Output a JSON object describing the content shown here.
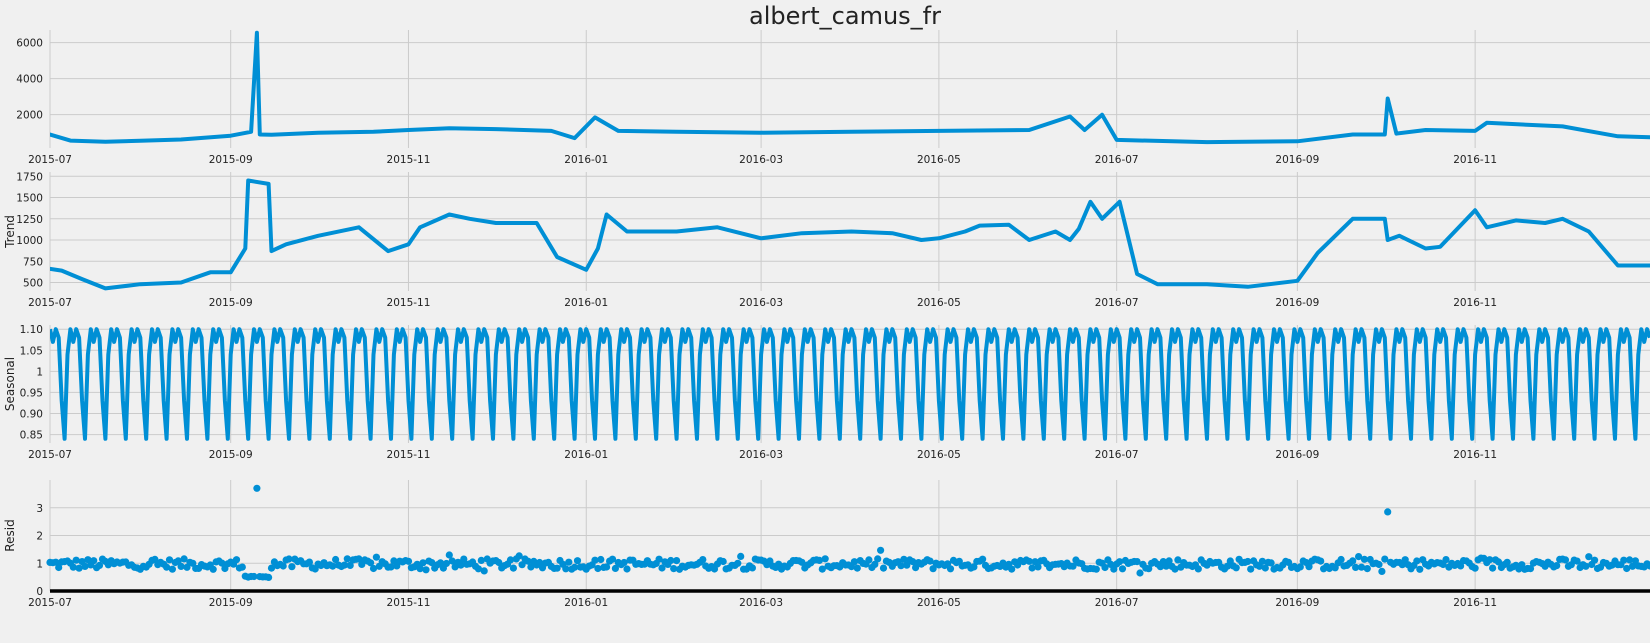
{
  "chart_data": {
    "title": "albert_camus_fr",
    "type": "line",
    "x_ticks": [
      "2015-07",
      "2015-09",
      "2015-11",
      "2016-01",
      "2016-03",
      "2016-05",
      "2016-07",
      "2016-09",
      "2016-11"
    ],
    "x_range": [
      "2015-07-01",
      "2016-12-31"
    ],
    "grid": true,
    "line_color": "#008fd5",
    "background_color": "#f0f0f0",
    "panels": [
      {
        "id": "observed",
        "type": "line",
        "ylabel": "",
        "ylim": [
          150,
          6700
        ],
        "yticks": [
          2000,
          4000,
          6000
        ],
        "series": [
          {
            "x": [
              "2015-07-01",
              "2015-07-08",
              "2015-07-20",
              "2015-08-01",
              "2015-08-15",
              "2015-09-01",
              "2015-09-08",
              "2015-09-10",
              "2015-09-11",
              "2015-09-15",
              "2015-10-01",
              "2015-10-20",
              "2015-11-01",
              "2015-11-15",
              "2015-12-01",
              "2015-12-20",
              "2015-12-28",
              "2016-01-04",
              "2016-01-12",
              "2016-02-01",
              "2016-03-01",
              "2016-04-01",
              "2016-05-01",
              "2016-06-01",
              "2016-06-15",
              "2016-06-20",
              "2016-06-26",
              "2016-07-01",
              "2016-08-01",
              "2016-09-01",
              "2016-09-20",
              "2016-10-01",
              "2016-10-02",
              "2016-10-05",
              "2016-10-15",
              "2016-11-01",
              "2016-11-05",
              "2016-12-01",
              "2016-12-20",
              "2016-12-31"
            ],
            "y": [
              900,
              560,
              500,
              550,
              620,
              830,
              1050,
              6550,
              900,
              880,
              1000,
              1050,
              1150,
              1250,
              1200,
              1100,
              700,
              1850,
              1100,
              1050,
              1000,
              1050,
              1100,
              1150,
              1900,
              1150,
              2000,
              600,
              480,
              520,
              900,
              900,
              2900,
              950,
              1150,
              1100,
              1550,
              1350,
              800,
              750
            ]
          }
        ]
      },
      {
        "id": "trend",
        "type": "line",
        "ylabel": "Trend",
        "ylim": [
          400,
          1800
        ],
        "yticks": [
          500,
          750,
          1000,
          1250,
          1500,
          1750
        ],
        "series": [
          {
            "x": [
              "2015-07-01",
              "2015-07-05",
              "2015-07-12",
              "2015-07-20",
              "2015-08-01",
              "2015-08-15",
              "2015-08-25",
              "2015-09-01",
              "2015-09-06",
              "2015-09-07",
              "2015-09-14",
              "2015-09-15",
              "2015-09-20",
              "2015-10-01",
              "2015-10-15",
              "2015-10-25",
              "2015-11-01",
              "2015-11-05",
              "2015-11-15",
              "2015-11-22",
              "2015-12-01",
              "2015-12-15",
              "2015-12-22",
              "2016-01-01",
              "2016-01-05",
              "2016-01-08",
              "2016-01-15",
              "2016-02-01",
              "2016-02-15",
              "2016-03-01",
              "2016-03-15",
              "2016-04-01",
              "2016-04-15",
              "2016-04-25",
              "2016-05-01",
              "2016-05-10",
              "2016-05-15",
              "2016-05-25",
              "2016-06-01",
              "2016-06-10",
              "2016-06-15",
              "2016-06-18",
              "2016-06-22",
              "2016-06-26",
              "2016-07-02",
              "2016-07-08",
              "2016-07-15",
              "2016-08-01",
              "2016-08-15",
              "2016-09-01",
              "2016-09-08",
              "2016-09-20",
              "2016-09-25",
              "2016-10-01",
              "2016-10-02",
              "2016-10-06",
              "2016-10-15",
              "2016-10-20",
              "2016-11-01",
              "2016-11-05",
              "2016-11-15",
              "2016-11-25",
              "2016-12-01",
              "2016-12-10",
              "2016-12-20",
              "2016-12-31"
            ],
            "y": [
              660,
              640,
              540,
              430,
              480,
              500,
              620,
              620,
              900,
              1700,
              1660,
              870,
              950,
              1050,
              1150,
              870,
              950,
              1150,
              1300,
              1250,
              1200,
              1200,
              800,
              650,
              900,
              1300,
              1100,
              1100,
              1150,
              1020,
              1080,
              1100,
              1080,
              1000,
              1020,
              1100,
              1170,
              1180,
              1000,
              1100,
              1000,
              1130,
              1450,
              1250,
              1450,
              600,
              480,
              480,
              450,
              520,
              850,
              1250,
              1250,
              1250,
              1000,
              1050,
              900,
              920,
              1350,
              1150,
              1230,
              1200,
              1250,
              1100,
              700,
              700
            ]
          }
        ]
      },
      {
        "id": "seasonal",
        "type": "line",
        "ylabel": "Seasonal",
        "ylim": [
          0.83,
          1.11
        ],
        "yticks": [
          0.85,
          0.9,
          0.95,
          1.0,
          1.05,
          1.1
        ],
        "period_days": 7,
        "pattern": [
          1.1,
          1.07,
          1.1,
          1.08,
          0.93,
          0.84,
          1.04
        ]
      },
      {
        "id": "resid",
        "type": "scatter",
        "ylabel": "Resid",
        "ylim": [
          0,
          4
        ],
        "yticks": [
          0,
          1,
          2,
          3
        ],
        "baseline": 0,
        "outliers": [
          {
            "x": "2015-09-10",
            "y": 3.7
          },
          {
            "x": "2016-10-02",
            "y": 2.85
          }
        ]
      }
    ]
  }
}
